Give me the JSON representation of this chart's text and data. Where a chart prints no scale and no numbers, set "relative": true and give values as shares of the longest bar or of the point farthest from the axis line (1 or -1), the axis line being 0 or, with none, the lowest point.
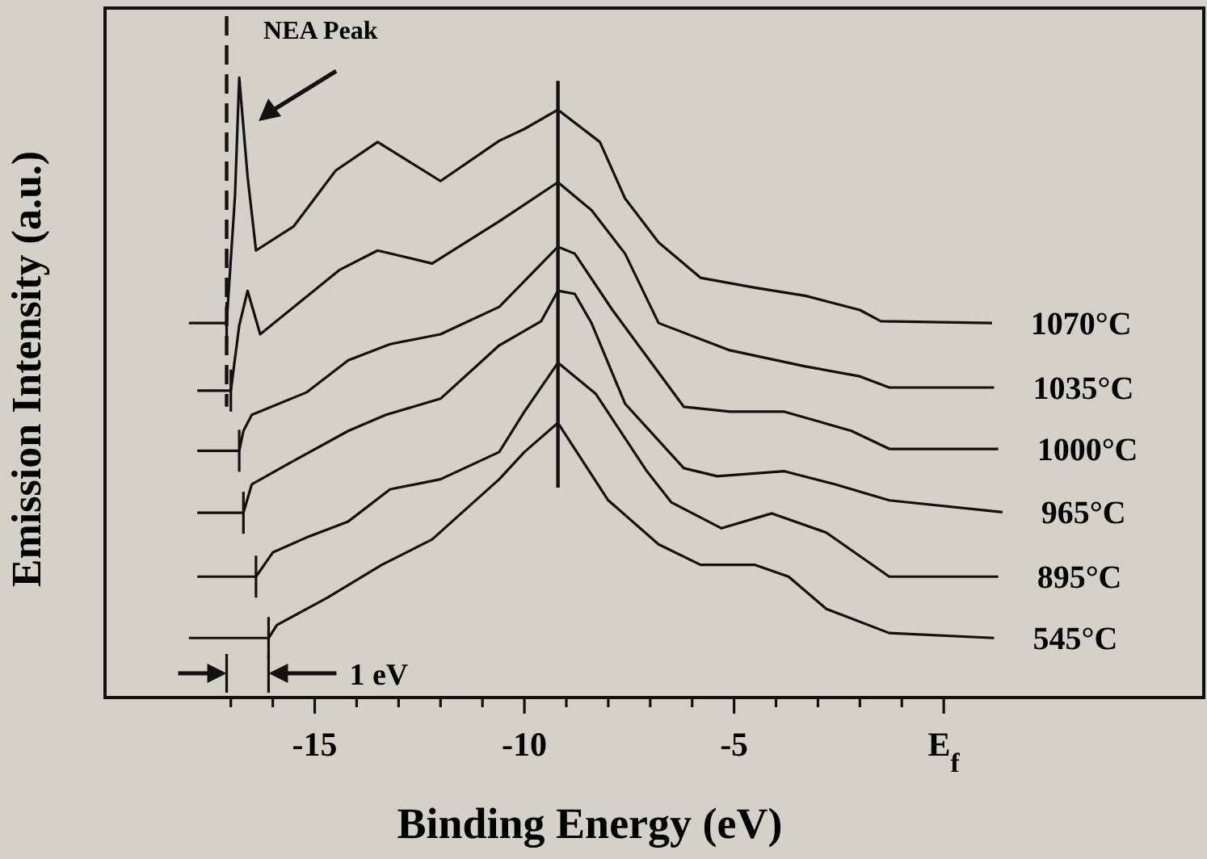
{
  "chart_data": {
    "type": "line",
    "relative": true,
    "xlabel": "Binding Energy (eV)",
    "ylabel": "Emission Intensity (a.u.)",
    "xlim": [
      -20,
      6.2
    ],
    "xticks": [
      {
        "value": -17,
        "label": null
      },
      {
        "value": -16,
        "label": null
      },
      -15,
      {
        "value": -14,
        "label": null
      },
      {
        "value": -13,
        "label": null
      },
      {
        "value": -12,
        "label": null
      },
      {
        "value": -11,
        "label": null
      },
      -10,
      {
        "value": -9,
        "label": null
      },
      {
        "value": -8,
        "label": null
      },
      {
        "value": -7,
        "label": null
      },
      {
        "value": -6,
        "label": null
      },
      -5,
      {
        "value": -4,
        "label": null
      },
      {
        "value": -3,
        "label": null
      },
      {
        "value": -2,
        "label": null
      },
      {
        "value": -1,
        "label": null
      },
      {
        "value": 0,
        "label": "E$_{f}$"
      }
    ],
    "series": [
      {
        "name": "1070°C",
        "color": "#111111",
        "x": [
          -18.0,
          -17.1,
          -16.9,
          -16.8,
          -16.6,
          -16.4,
          -15.5,
          -14.5,
          -13.5,
          -12.0,
          -10.6,
          -10.0,
          -9.2,
          -8.2,
          -7.6,
          -6.8,
          -5.8,
          -4.5,
          -3.3,
          -2.0,
          -1.5,
          1.15
        ],
        "values": [
          0.604,
          0.604,
          0.81,
          1.0,
          0.84,
          0.721,
          0.76,
          0.85,
          0.896,
          0.833,
          0.898,
          0.917,
          0.948,
          0.896,
          0.805,
          0.734,
          0.677,
          0.661,
          0.648,
          0.625,
          0.607,
          0.604
        ]
      },
      {
        "name": "1035°C",
        "color": "#111111",
        "x": [
          -17.8,
          -17.0,
          -16.8,
          -16.6,
          -16.3,
          -14.4,
          -13.5,
          -12.2,
          -10.6,
          -9.2,
          -8.4,
          -7.6,
          -6.8,
          -5.1,
          -3.3,
          -2.0,
          -1.3,
          1.2
        ],
        "values": [
          0.495,
          0.495,
          0.6,
          0.656,
          0.586,
          0.69,
          0.721,
          0.7,
          0.768,
          0.831,
          0.786,
          0.716,
          0.604,
          0.56,
          0.534,
          0.518,
          0.5,
          0.5
        ]
      },
      {
        "name": "1000°C",
        "color": "#111111",
        "x": [
          -17.8,
          -16.8,
          -16.7,
          -16.5,
          -15.2,
          -14.2,
          -13.2,
          -12.0,
          -10.6,
          -9.2,
          -8.8,
          -7.9,
          -6.2,
          -5.1,
          -3.8,
          -2.2,
          -1.3,
          1.3
        ],
        "values": [
          0.398,
          0.398,
          0.43,
          0.456,
          0.492,
          0.544,
          0.57,
          0.586,
          0.63,
          0.727,
          0.716,
          0.625,
          0.469,
          0.461,
          0.461,
          0.43,
          0.401,
          0.401
        ]
      },
      {
        "name": "965°C",
        "color": "#111111",
        "x": [
          -17.8,
          -16.7,
          -16.5,
          -15.6,
          -14.2,
          -13.3,
          -12.0,
          -10.6,
          -9.6,
          -9.2,
          -8.8,
          -8.4,
          -7.6,
          -6.2,
          -5.4,
          -3.8,
          -2.6,
          -1.3,
          1.4
        ],
        "values": [
          0.298,
          0.298,
          0.344,
          0.378,
          0.43,
          0.456,
          0.482,
          0.568,
          0.607,
          0.656,
          0.651,
          0.604,
          0.474,
          0.37,
          0.357,
          0.365,
          0.344,
          0.318,
          0.299
        ]
      },
      {
        "name": "895°C",
        "color": "#111111",
        "x": [
          -17.8,
          -16.4,
          -16.0,
          -15.2,
          -14.2,
          -13.2,
          -12.0,
          -10.6,
          -10.0,
          -9.2,
          -8.3,
          -7.1,
          -6.5,
          -5.3,
          -4.1,
          -2.8,
          -1.3,
          1.3
        ],
        "values": [
          0.195,
          0.195,
          0.234,
          0.258,
          0.284,
          0.336,
          0.352,
          0.396,
          0.461,
          0.54,
          0.49,
          0.367,
          0.315,
          0.273,
          0.297,
          0.266,
          0.195,
          0.195
        ]
      },
      {
        "name": "545°C",
        "color": "#111111",
        "x": [
          -18.0,
          -16.1,
          -15.9,
          -14.7,
          -13.4,
          -12.2,
          -10.6,
          -10.0,
          -9.2,
          -8.0,
          -6.8,
          -5.8,
          -4.5,
          -3.7,
          -2.8,
          -1.3,
          1.2
        ],
        "values": [
          0.096,
          0.096,
          0.117,
          0.161,
          0.214,
          0.255,
          0.352,
          0.396,
          0.443,
          0.318,
          0.247,
          0.214,
          0.214,
          0.195,
          0.143,
          0.104,
          0.096
        ]
      }
    ],
    "ref_lines": [
      {
        "axis": "x",
        "value": -17.1,
        "line_style": "dashed"
      },
      {
        "axis": "x",
        "value": -9.2,
        "line_style": "solid"
      }
    ],
    "annotations": [
      {
        "text": "NEA Peak",
        "x": -16.8,
        "y": 1.0
      },
      "1 eV"
    ],
    "marker": "none",
    "line_style": "solid"
  }
}
